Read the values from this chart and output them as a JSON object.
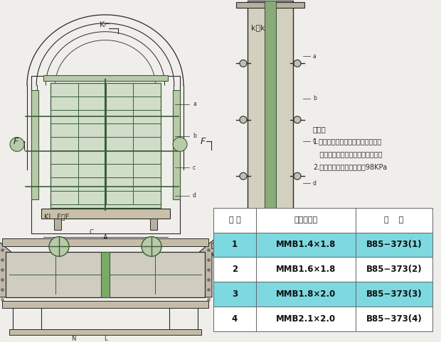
{
  "bg_color": "#f0eeea",
  "draw_bg": "#f0eeea",
  "table_headers": [
    "序 号",
    "型号及规格",
    "图    号"
  ],
  "table_rows": [
    [
      "1",
      "MMB1.4×1.8",
      "B85−373(1)"
    ],
    [
      "2",
      "MMB1.6×1.8",
      "B85−373(2)"
    ],
    [
      "3",
      "MMB1.8×2.0",
      "B85−373(3)"
    ],
    [
      "4",
      "MMB2.1×2.0",
      "B85−373(4)"
    ]
  ],
  "highlight_rows": [
    0,
    2
  ],
  "highlight_color": "#7dd8e0",
  "white_color": "#ffffff",
  "note_lines": [
    "说明：",
    "1.本密闭门设于井下水泵房和变电所",
    "   的通道中，以防止水的突然浸入。",
    "2.本密闭门最大承受压力为98KPa"
  ],
  "dc": "#3a5e38",
  "lc": "#2a2a2a"
}
